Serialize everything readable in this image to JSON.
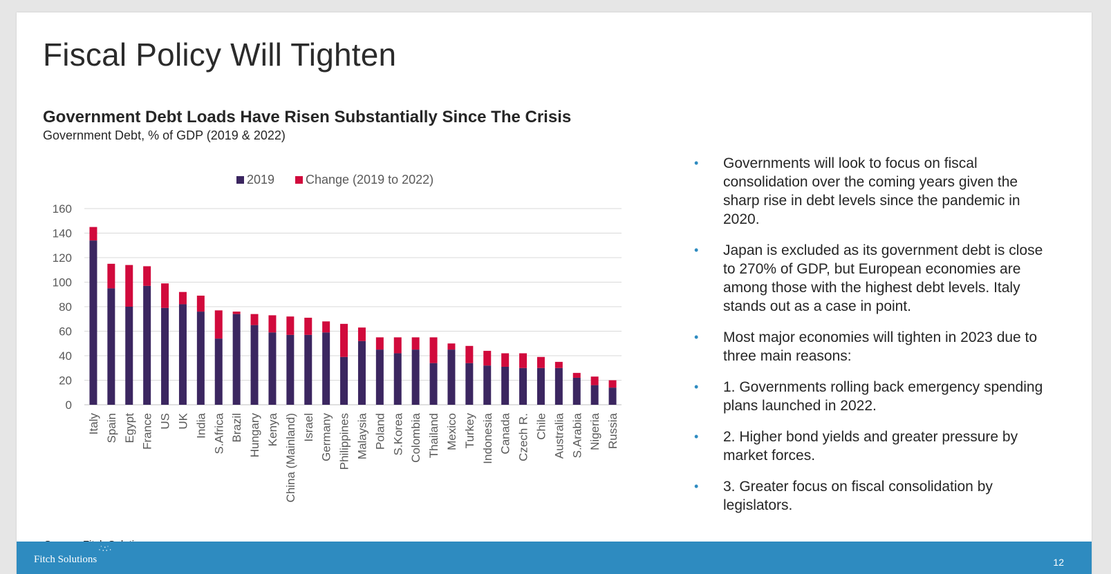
{
  "slide": {
    "title": "Fiscal Policy Will Tighten",
    "source": "Source: Fitch Solutions",
    "footer_logo": "Fitch Solutions",
    "page_number": "12"
  },
  "colors": {
    "series_2019": "#3b2660",
    "series_change": "#d10a3c",
    "footer": "#2e8bc0",
    "bullet": "#2e8bc0"
  },
  "bullets": [
    {
      "icon": "•",
      "text": "Governments will look to focus on fiscal consolidation over the coming years given the sharp rise in debt levels since the pandemic in 2020."
    },
    {
      "icon": "•",
      "text": "Japan is excluded as its government debt is close to 270% of GDP, but European economies are among those with the highest debt levels. Italy stands out as a case in point."
    },
    {
      "icon": "•",
      "text": "Most major economies will tighten in 2023 due to three main reasons:"
    },
    {
      "icon": "•",
      "text": "1. Governments rolling back emergency spending plans launched in 2022."
    },
    {
      "icon": "•",
      "text": "2. Higher bond yields and greater pressure by market forces."
    },
    {
      "icon": "•",
      "text": "3. Greater focus on fiscal consolidation by legislators."
    }
  ],
  "chart_data": {
    "type": "bar",
    "stacked": true,
    "title": "Government Debt Loads Have Risen Substantially Since The Crisis",
    "subtitle": "Government Debt, % of GDP (2019 & 2022)",
    "legend_position": "top",
    "grid": true,
    "ylim": [
      0,
      160
    ],
    "yticks": [
      0,
      20,
      40,
      60,
      80,
      100,
      120,
      140,
      160
    ],
    "categories": [
      "Italy",
      "Spain",
      "Egypt",
      "France",
      "US",
      "UK",
      "India",
      "S.Africa",
      "Brazil",
      "Hungary",
      "Kenya",
      "China (Mainland)",
      "Israel",
      "Germany",
      "Philippines",
      "Malaysia",
      "Poland",
      "S.Korea",
      "Colombia",
      "Thailand",
      "Mexico",
      "Turkey",
      "Indonesia",
      "Canada",
      "Czech R.",
      "Chile",
      "Australia",
      "S.Arabia",
      "Nigeria",
      "Russia"
    ],
    "series": [
      {
        "name": "2019",
        "color": "#3b2660",
        "values": [
          134,
          95,
          80,
          97,
          79,
          82,
          76,
          54,
          74,
          65,
          59,
          57,
          57,
          59,
          39,
          52,
          45,
          42,
          45,
          34,
          45,
          34,
          32,
          31,
          30,
          30,
          30,
          22,
          16,
          14
        ]
      },
      {
        "name": "Change (2019 to 2022)",
        "color": "#d10a3c",
        "values": [
          11,
          20,
          34,
          16,
          20,
          10,
          13,
          23,
          2,
          9,
          14,
          15,
          14,
          9,
          27,
          11,
          10,
          13,
          10,
          21,
          5,
          14,
          12,
          11,
          12,
          9,
          5,
          4,
          7,
          6
        ]
      }
    ]
  }
}
